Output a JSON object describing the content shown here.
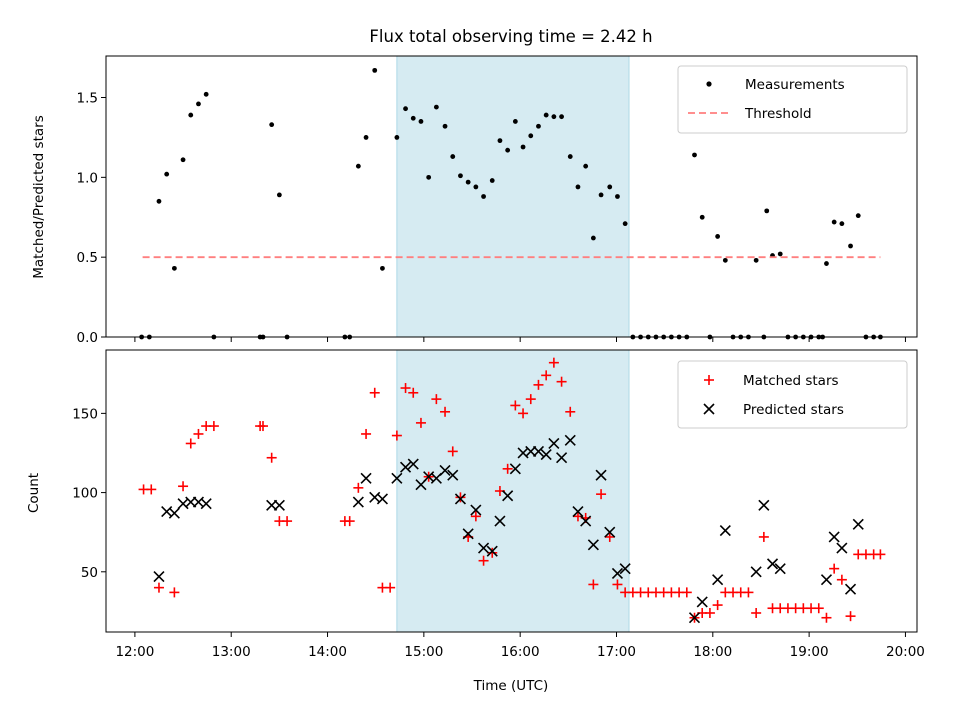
{
  "title": "Flux total observing time = 2.42 h",
  "colors": {
    "measurement": "#000000",
    "threshold": "#ff7f7f",
    "matched": "#ff0000",
    "predicted": "#000000",
    "shade": "#add8e6"
  },
  "chart_data": [
    {
      "type": "scatter",
      "ylabel": "Matched/Predicted stars",
      "xlabel": "",
      "xlim": [
        11.7,
        20.12
      ],
      "ylim": [
        0,
        1.76
      ],
      "yticks": [
        0.0,
        0.5,
        1.0,
        1.5
      ],
      "ytick_labels": [
        "0.0",
        "0.5",
        "1.0",
        "1.5"
      ],
      "shaded_span": [
        14.72,
        17.13
      ],
      "legend": {
        "placement": "top-right",
        "entries": [
          "Measurements",
          "Threshold"
        ]
      },
      "threshold": {
        "name": "Threshold",
        "x": [
          12.08,
          19.74
        ],
        "y": 0.5
      },
      "series": [
        {
          "name": "Measurements",
          "points": [
            [
              12.07,
              0
            ],
            [
              12.15,
              0
            ],
            [
              12.25,
              0.85
            ],
            [
              12.33,
              1.02
            ],
            [
              12.41,
              0.43
            ],
            [
              12.5,
              1.11
            ],
            [
              12.58,
              1.39
            ],
            [
              12.66,
              1.46
            ],
            [
              12.74,
              1.52
            ],
            [
              12.82,
              0
            ],
            [
              13.3,
              0
            ],
            [
              13.33,
              0
            ],
            [
              13.42,
              1.33
            ],
            [
              13.5,
              0.89
            ],
            [
              13.58,
              0
            ],
            [
              14.18,
              0
            ],
            [
              14.23,
              0
            ],
            [
              14.32,
              1.07
            ],
            [
              14.4,
              1.25
            ],
            [
              14.49,
              1.67
            ],
            [
              14.57,
              0.43
            ],
            [
              14.72,
              1.25
            ],
            [
              14.81,
              1.43
            ],
            [
              14.89,
              1.37
            ],
            [
              14.97,
              1.35
            ],
            [
              15.05,
              1.0
            ],
            [
              15.13,
              1.44
            ],
            [
              15.22,
              1.32
            ],
            [
              15.3,
              1.13
            ],
            [
              15.38,
              1.01
            ],
            [
              15.46,
              0.97
            ],
            [
              15.54,
              0.94
            ],
            [
              15.62,
              0.88
            ],
            [
              15.71,
              0.98
            ],
            [
              15.79,
              1.23
            ],
            [
              15.87,
              1.17
            ],
            [
              15.95,
              1.35
            ],
            [
              16.03,
              1.19
            ],
            [
              16.11,
              1.26
            ],
            [
              16.19,
              1.32
            ],
            [
              16.27,
              1.39
            ],
            [
              16.35,
              1.38
            ],
            [
              16.43,
              1.38
            ],
            [
              16.52,
              1.13
            ],
            [
              16.6,
              0.94
            ],
            [
              16.68,
              1.07
            ],
            [
              16.76,
              0.62
            ],
            [
              16.84,
              0.89
            ],
            [
              16.93,
              0.94
            ],
            [
              17.01,
              0.88
            ],
            [
              17.09,
              0.71
            ],
            [
              17.17,
              0
            ],
            [
              17.25,
              0
            ],
            [
              17.33,
              0
            ],
            [
              17.41,
              0
            ],
            [
              17.49,
              0
            ],
            [
              17.57,
              0
            ],
            [
              17.65,
              0
            ],
            [
              17.73,
              0
            ],
            [
              17.81,
              1.14
            ],
            [
              17.89,
              0.75
            ],
            [
              17.97,
              0
            ],
            [
              18.05,
              0.63
            ],
            [
              18.13,
              0.48
            ],
            [
              18.21,
              0
            ],
            [
              18.29,
              0
            ],
            [
              18.37,
              0
            ],
            [
              18.45,
              0.48
            ],
            [
              18.53,
              0
            ],
            [
              18.56,
              0.79
            ],
            [
              18.62,
              0.51
            ],
            [
              18.7,
              0.52
            ],
            [
              18.78,
              0
            ],
            [
              18.86,
              0
            ],
            [
              18.94,
              0
            ],
            [
              19.02,
              0
            ],
            [
              19.1,
              0
            ],
            [
              19.14,
              0
            ],
            [
              19.18,
              0.46
            ],
            [
              19.26,
              0.72
            ],
            [
              19.34,
              0.71
            ],
            [
              19.43,
              0.57
            ],
            [
              19.51,
              0.76
            ],
            [
              19.59,
              0
            ],
            [
              19.67,
              0
            ],
            [
              19.74,
              0
            ]
          ]
        }
      ]
    },
    {
      "type": "scatter",
      "ylabel": "Count",
      "xlabel": "Time (UTC)",
      "xlim": [
        11.7,
        20.12
      ],
      "ylim": [
        12,
        190
      ],
      "yticks": [
        50,
        100,
        150
      ],
      "ytick_labels": [
        "50",
        "100",
        "150"
      ],
      "xticks": [
        12,
        13,
        14,
        15,
        16,
        17,
        18,
        19,
        20
      ],
      "xtick_labels": [
        "12:00",
        "13:00",
        "14:00",
        "15:00",
        "16:00",
        "17:00",
        "18:00",
        "19:00",
        "20:00"
      ],
      "shaded_span": [
        14.72,
        17.13
      ],
      "legend": {
        "placement": "top-right",
        "entries": [
          "Matched stars",
          "Predicted stars"
        ]
      },
      "series": [
        {
          "name": "Matched stars",
          "marker": "plus",
          "points": [
            [
              12.09,
              102
            ],
            [
              12.17,
              102
            ],
            [
              12.25,
              40
            ],
            [
              12.41,
              37
            ],
            [
              12.5,
              104
            ],
            [
              12.58,
              131
            ],
            [
              12.66,
              137
            ],
            [
              12.74,
              142
            ],
            [
              12.82,
              142
            ],
            [
              13.3,
              142
            ],
            [
              13.33,
              142
            ],
            [
              13.42,
              122
            ],
            [
              13.5,
              82
            ],
            [
              13.58,
              82
            ],
            [
              14.18,
              82
            ],
            [
              14.23,
              82
            ],
            [
              14.32,
              103
            ],
            [
              14.4,
              137
            ],
            [
              14.49,
              163
            ],
            [
              14.57,
              40
            ],
            [
              14.65,
              40
            ],
            [
              14.72,
              136
            ],
            [
              14.81,
              166
            ],
            [
              14.89,
              163
            ],
            [
              14.97,
              144
            ],
            [
              15.05,
              110
            ],
            [
              15.13,
              159
            ],
            [
              15.22,
              151
            ],
            [
              15.3,
              126
            ],
            [
              15.38,
              97
            ],
            [
              15.46,
              72
            ],
            [
              15.54,
              85
            ],
            [
              15.62,
              57
            ],
            [
              15.71,
              62
            ],
            [
              15.79,
              101
            ],
            [
              15.87,
              115
            ],
            [
              15.95,
              155
            ],
            [
              16.03,
              150
            ],
            [
              16.11,
              159
            ],
            [
              16.19,
              168
            ],
            [
              16.27,
              174
            ],
            [
              16.35,
              182
            ],
            [
              16.43,
              170
            ],
            [
              16.52,
              151
            ],
            [
              16.6,
              85
            ],
            [
              16.68,
              84
            ],
            [
              16.76,
              42
            ],
            [
              16.84,
              99
            ],
            [
              16.93,
              72
            ],
            [
              17.01,
              42
            ],
            [
              17.09,
              37
            ],
            [
              17.17,
              37
            ],
            [
              17.25,
              37
            ],
            [
              17.33,
              37
            ],
            [
              17.41,
              37
            ],
            [
              17.49,
              37
            ],
            [
              17.57,
              37
            ],
            [
              17.65,
              37
            ],
            [
              17.73,
              37
            ],
            [
              17.81,
              21
            ],
            [
              17.89,
              24
            ],
            [
              17.97,
              24
            ],
            [
              18.05,
              29
            ],
            [
              18.13,
              37
            ],
            [
              18.21,
              37
            ],
            [
              18.29,
              37
            ],
            [
              18.37,
              37
            ],
            [
              18.45,
              24
            ],
            [
              18.53,
              72
            ],
            [
              18.62,
              27
            ],
            [
              18.7,
              27
            ],
            [
              18.78,
              27
            ],
            [
              18.86,
              27
            ],
            [
              18.94,
              27
            ],
            [
              19.02,
              27
            ],
            [
              19.1,
              27
            ],
            [
              19.18,
              21
            ],
            [
              19.26,
              52
            ],
            [
              19.34,
              45
            ],
            [
              19.43,
              22
            ],
            [
              19.51,
              61
            ],
            [
              19.59,
              61
            ],
            [
              19.67,
              61
            ],
            [
              19.74,
              61
            ]
          ]
        },
        {
          "name": "Predicted stars",
          "marker": "x",
          "points": [
            [
              12.25,
              47
            ],
            [
              12.33,
              88
            ],
            [
              12.41,
              87
            ],
            [
              12.5,
              93
            ],
            [
              12.58,
              94
            ],
            [
              12.66,
              94
            ],
            [
              12.74,
              93
            ],
            [
              13.42,
              92
            ],
            [
              13.5,
              92
            ],
            [
              14.32,
              94
            ],
            [
              14.4,
              109
            ],
            [
              14.49,
              97
            ],
            [
              14.57,
              96
            ],
            [
              14.72,
              109
            ],
            [
              14.81,
              116
            ],
            [
              14.89,
              118
            ],
            [
              14.97,
              105
            ],
            [
              15.05,
              110
            ],
            [
              15.13,
              109
            ],
            [
              15.22,
              114
            ],
            [
              15.3,
              111
            ],
            [
              15.38,
              96
            ],
            [
              15.46,
              74
            ],
            [
              15.54,
              89
            ],
            [
              15.62,
              65
            ],
            [
              15.71,
              63
            ],
            [
              15.79,
              82
            ],
            [
              15.87,
              98
            ],
            [
              15.95,
              115
            ],
            [
              16.03,
              125
            ],
            [
              16.11,
              126
            ],
            [
              16.19,
              126
            ],
            [
              16.27,
              124
            ],
            [
              16.35,
              131
            ],
            [
              16.43,
              122
            ],
            [
              16.52,
              133
            ],
            [
              16.6,
              88
            ],
            [
              16.68,
              82
            ],
            [
              16.76,
              67
            ],
            [
              16.84,
              111
            ],
            [
              16.93,
              75
            ],
            [
              17.01,
              49
            ],
            [
              17.09,
              52
            ],
            [
              17.81,
              21
            ],
            [
              17.89,
              31
            ],
            [
              18.05,
              45
            ],
            [
              18.13,
              76
            ],
            [
              18.45,
              50
            ],
            [
              18.53,
              92
            ],
            [
              18.62,
              55
            ],
            [
              18.7,
              52
            ],
            [
              19.18,
              45
            ],
            [
              19.26,
              72
            ],
            [
              19.34,
              65
            ],
            [
              19.43,
              39
            ],
            [
              19.51,
              80
            ]
          ]
        }
      ]
    }
  ]
}
